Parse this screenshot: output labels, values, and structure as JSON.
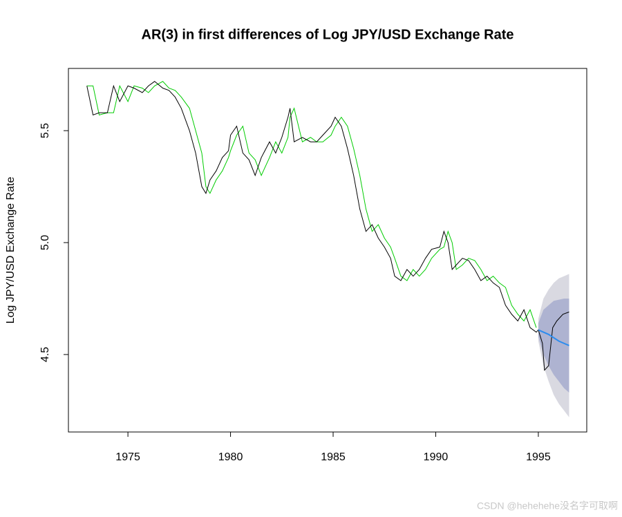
{
  "chart_data": {
    "type": "line",
    "title": "AR(3) in first differences of Log JPY/USD Exchange Rate",
    "y_label": "Log JPY/USD Exchange Rate",
    "xlim": [
      1972.1,
      1997.36
    ],
    "xticks": [
      1975,
      1980,
      1985,
      1990,
      1995
    ],
    "ylim": [
      4.154,
      5.778
    ],
    "yticks": [
      4.5,
      {
        "value": 5,
        "label": "5.0"
      },
      5.5
    ],
    "bands": [
      {
        "color": "#d9d9e1",
        "x": [
          1995.0,
          1995.25,
          1995.5,
          1995.75,
          1996.0,
          1996.25,
          1996.5
        ],
        "lower": [
          4.56,
          4.45,
          4.38,
          4.32,
          4.28,
          4.25,
          4.22
        ],
        "upper": [
          4.66,
          4.75,
          4.79,
          4.82,
          4.84,
          4.85,
          4.86
        ]
      },
      {
        "color": "#aeb3d1",
        "x": [
          1995.0,
          1995.25,
          1995.5,
          1995.75,
          1996.0,
          1996.25,
          1996.5
        ],
        "lower": [
          4.58,
          4.5,
          4.45,
          4.41,
          4.38,
          4.35,
          4.33
        ],
        "upper": [
          4.64,
          4.7,
          4.72,
          4.74,
          4.745,
          4.75,
          4.75
        ]
      }
    ],
    "series": [
      {
        "color": "#00cc00",
        "x": [
          1973.0,
          1973.3,
          1973.6,
          1974.0,
          1974.3,
          1974.6,
          1975.0,
          1975.3,
          1975.7,
          1976.0,
          1976.3,
          1976.7,
          1977.0,
          1977.3,
          1977.6,
          1978.0,
          1978.3,
          1978.6,
          1978.8,
          1979.0,
          1979.3,
          1979.6,
          1979.9,
          1980.0,
          1980.3,
          1980.6,
          1980.9,
          1981.2,
          1981.5,
          1981.9,
          1982.2,
          1982.5,
          1982.8,
          1982.9,
          1983.1,
          1983.5,
          1983.9,
          1984.2,
          1984.5,
          1984.9,
          1985.1,
          1985.4,
          1985.7,
          1986.0,
          1986.3,
          1986.6,
          1986.9,
          1987.2,
          1987.5,
          1987.8,
          1988.0,
          1988.3,
          1988.6,
          1988.9,
          1989.2,
          1989.5,
          1989.8,
          1990.2,
          1990.4,
          1990.6,
          1990.8,
          1991.0,
          1991.3,
          1991.6,
          1991.9,
          1992.2,
          1992.5,
          1992.8,
          1993.1,
          1993.4,
          1993.7,
          1994.0,
          1994.3,
          1994.6,
          1994.9
        ],
        "values": [
          5.7,
          5.7,
          5.57,
          5.58,
          5.58,
          5.7,
          5.63,
          5.7,
          5.69,
          5.67,
          5.7,
          5.72,
          5.69,
          5.68,
          5.65,
          5.6,
          5.5,
          5.4,
          5.25,
          5.22,
          5.28,
          5.32,
          5.38,
          5.41,
          5.48,
          5.52,
          5.4,
          5.37,
          5.3,
          5.38,
          5.45,
          5.4,
          5.47,
          5.56,
          5.6,
          5.45,
          5.47,
          5.45,
          5.45,
          5.48,
          5.52,
          5.56,
          5.52,
          5.42,
          5.3,
          5.15,
          5.05,
          5.08,
          5.02,
          4.98,
          4.93,
          4.85,
          4.83,
          4.88,
          4.85,
          4.88,
          4.93,
          4.97,
          4.98,
          5.05,
          5.0,
          4.88,
          4.9,
          4.93,
          4.92,
          4.88,
          4.83,
          4.85,
          4.82,
          4.8,
          4.72,
          4.68,
          4.65,
          4.7,
          4.62
        ]
      },
      {
        "color": "#000000",
        "x": [
          1973.0,
          1973.3,
          1973.6,
          1974.0,
          1974.3,
          1974.6,
          1975.0,
          1975.3,
          1975.7,
          1976.0,
          1976.3,
          1976.7,
          1977.0,
          1977.3,
          1977.6,
          1978.0,
          1978.3,
          1978.6,
          1978.8,
          1979.0,
          1979.3,
          1979.6,
          1979.9,
          1980.0,
          1980.3,
          1980.6,
          1980.9,
          1981.2,
          1981.5,
          1981.9,
          1982.2,
          1982.5,
          1982.8,
          1982.9,
          1983.1,
          1983.5,
          1983.9,
          1984.2,
          1984.5,
          1984.9,
          1985.1,
          1985.4,
          1985.7,
          1986.0,
          1986.3,
          1986.6,
          1986.9,
          1987.2,
          1987.5,
          1987.8,
          1988.0,
          1988.3,
          1988.6,
          1988.9,
          1989.2,
          1989.5,
          1989.8,
          1990.2,
          1990.4,
          1990.6,
          1990.8,
          1991.0,
          1991.3,
          1991.6,
          1991.9,
          1992.2,
          1992.5,
          1992.8,
          1993.1,
          1993.4,
          1993.7,
          1994.0,
          1994.3,
          1994.6,
          1994.9,
          1995.0,
          1995.2,
          1995.3,
          1995.5,
          1995.7,
          1995.9,
          1996.2,
          1996.5
        ],
        "values": [
          5.7,
          5.57,
          5.58,
          5.58,
          5.7,
          5.63,
          5.7,
          5.69,
          5.67,
          5.7,
          5.72,
          5.69,
          5.68,
          5.65,
          5.6,
          5.5,
          5.4,
          5.25,
          5.22,
          5.28,
          5.32,
          5.38,
          5.41,
          5.48,
          5.52,
          5.4,
          5.37,
          5.3,
          5.38,
          5.45,
          5.4,
          5.47,
          5.56,
          5.6,
          5.45,
          5.47,
          5.45,
          5.45,
          5.48,
          5.52,
          5.56,
          5.52,
          5.42,
          5.3,
          5.15,
          5.05,
          5.08,
          5.02,
          4.98,
          4.93,
          4.85,
          4.83,
          4.88,
          4.85,
          4.88,
          4.93,
          4.97,
          4.98,
          5.05,
          5.0,
          4.88,
          4.9,
          4.93,
          4.92,
          4.88,
          4.83,
          4.85,
          4.82,
          4.8,
          4.72,
          4.68,
          4.65,
          4.7,
          4.62,
          4.6,
          4.61,
          4.55,
          4.43,
          4.45,
          4.62,
          4.65,
          4.68,
          4.69
        ]
      },
      {
        "color": "#2b8cef",
        "x": [
          1995.0,
          1995.25,
          1995.5,
          1995.75,
          1996.0,
          1996.25,
          1996.5
        ],
        "values": [
          4.61,
          4.6,
          4.59,
          4.575,
          4.56,
          4.55,
          4.54
        ]
      }
    ]
  },
  "watermark": "CSDN @hehehehe没名字可取啊"
}
